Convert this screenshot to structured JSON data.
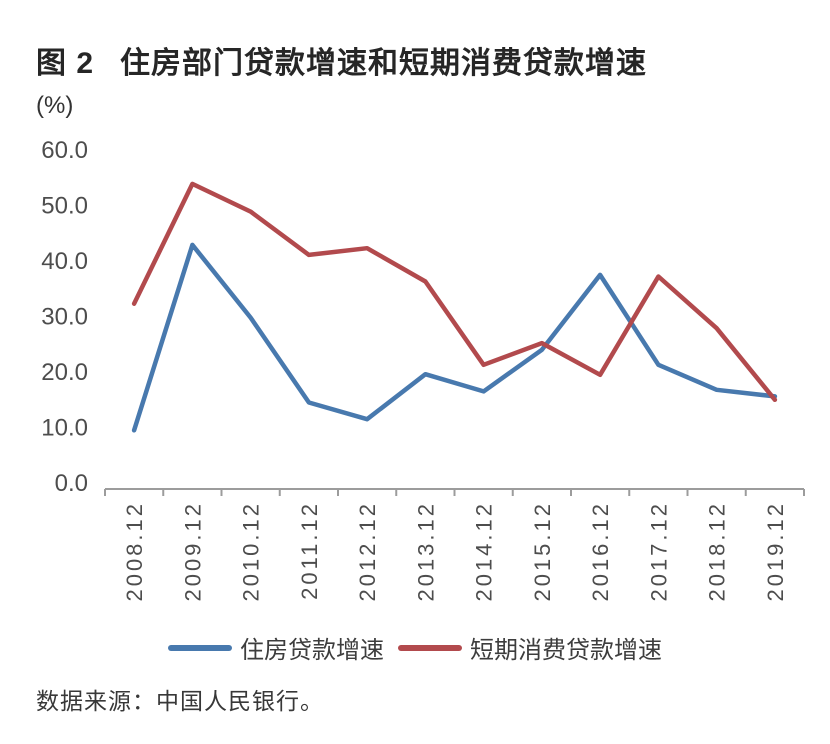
{
  "header": {
    "figure_label": "图 2",
    "title": "住房部门贷款增速和短期消费贷款增速"
  },
  "chart": {
    "unit_label": "(%)"
  },
  "chart_data": {
    "type": "line",
    "title": "住房部门贷款增速和短期消费贷款增速",
    "ylabel": "(%)",
    "xlabel": "",
    "categories": [
      "2008.12",
      "2009.12",
      "2010.12",
      "2011.12",
      "2012.12",
      "2013.12",
      "2014.12",
      "2015.12",
      "2016.12",
      "2017.12",
      "2018.12",
      "2019.12"
    ],
    "series": [
      {
        "name": "住房贷款增速",
        "color": "#4879ae",
        "values": [
          9.5,
          42.9,
          29.8,
          14.5,
          11.5,
          19.6,
          16.5,
          24.0,
          37.5,
          21.3,
          16.8,
          15.6
        ]
      },
      {
        "name": "短期消费贷款增速",
        "color": "#b24a4d",
        "values": [
          32.3,
          53.9,
          48.9,
          41.1,
          42.3,
          36.3,
          21.3,
          25.2,
          19.5,
          37.2,
          27.9,
          15.0
        ]
      }
    ],
    "ylim": [
      0,
      60
    ],
    "ytick_step": 10,
    "yticks": [
      "0.0",
      "10.0",
      "20.0",
      "30.0",
      "40.0",
      "50.0",
      "60.0"
    ],
    "grid": false,
    "legend_position": "bottom"
  },
  "footer": {
    "source": "数据来源：中国人民银行。"
  }
}
